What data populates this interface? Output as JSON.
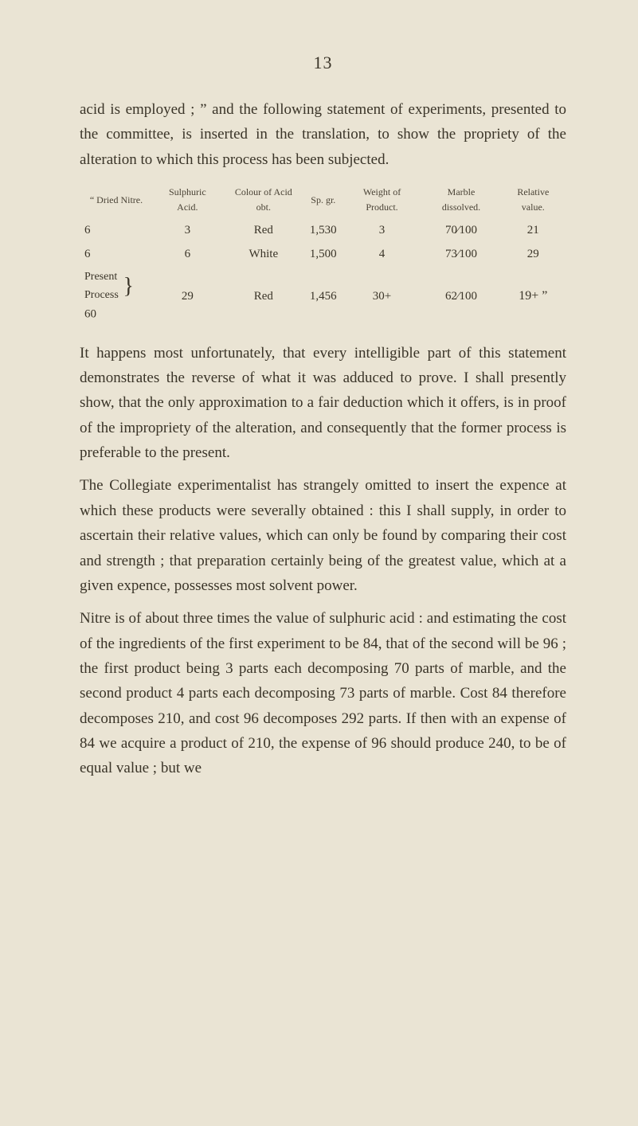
{
  "page": {
    "number": "13"
  },
  "p1": "acid is employed ; ” and the following statement of expe­riments, presented to the committee, is inserted in the translation, to show the propriety of the alteration to which this process has been subjected.",
  "table": {
    "headers": {
      "c0": "“ Dried Nitre.",
      "c1": "Sulphuric Acid.",
      "c2": "Colour of Acid obt.",
      "c3": "Sp. gr.",
      "c4": "Weight of Product.",
      "c5": "Marble dissolved.",
      "c6": "Relative value."
    },
    "rows": [
      {
        "c0": "6",
        "c1": "3",
        "c2": "Red",
        "c3": "1,530",
        "c4": "3",
        "c5": "70⁄100",
        "c6": "21"
      },
      {
        "c0": "6",
        "c1": "6",
        "c2": "White",
        "c3": "1,500",
        "c4": "4",
        "c5": "73⁄100",
        "c6": "29"
      },
      {
        "c0_a": "Present",
        "c0_b": "Process",
        "c0_c": "60",
        "c1": "29",
        "c2": "Red",
        "c3": "1,456",
        "c4": "30+",
        "c5": "62⁄100",
        "c6": "19+ ”"
      }
    ]
  },
  "p2": "It happens most unfortunately, that every intelligible part of this statement demonstrates the reverse of what it was adduced to prove. I shall presently show, that the only approximation to a fair deduction which it offers, is in proof of the impropriety of the alteration, and conse­quently that the former process is preferable to the present.",
  "p3": "The Collegiate experimentalist has strangely omitted to insert the expence at which these products were seve­rally obtained : this I shall supply, in order to ascertain their relative values, which can only be found by com­paring their cost and strength ; that preparation certainly being of the greatest value, which at a given expence, possesses most solvent power.",
  "p4": "Nitre is of about three times the value of sulphuric acid : and estimating the cost of the ingredients of the first experiment to be 84, that of the second will be 96 ; the first product being 3 parts each decomposing 70 parts of marble, and the second product 4 parts each decomposing 73 parts of marble. Cost 84 therefore decomposes 210, and cost 96 decomposes 292 parts. If then with an expense of 84 we acquire a product of 210, the expense of 96 should produce 240, to be of equal value ; but we"
}
